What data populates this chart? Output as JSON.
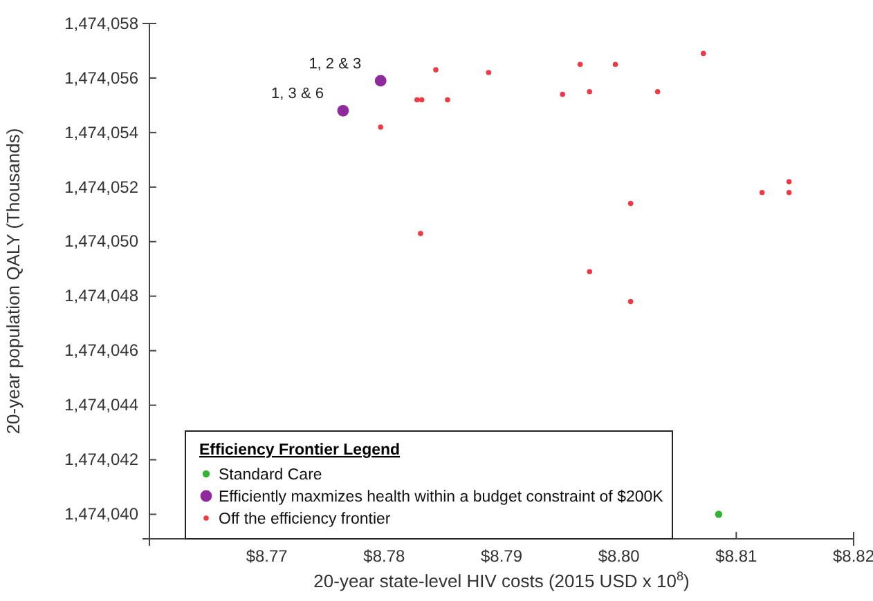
{
  "chart_data": {
    "type": "scatter",
    "xlabel": "20-year state-level HIV costs (2015 USD x 10$^{8}$)",
    "ylabel": "20-year population QALY (Thousands)",
    "legend_title": "Efficiency Frontier Legend",
    "legend": "bottom left",
    "marker": "circle",
    "grid": false,
    "xlim": [
      8.76,
      8.82
    ],
    "ylim": [
      1474039.1,
      1474058
    ],
    "xticks": [
      {
        "value": 8.77,
        "label": "$8.77"
      },
      {
        "value": 8.78,
        "label": "$8.78"
      },
      {
        "value": 8.79,
        "label": "$8.79"
      },
      {
        "value": 8.8,
        "label": "$8.80"
      },
      {
        "value": 8.81,
        "label": "$8.81"
      },
      {
        "value": 8.82,
        "label": "$8.82"
      }
    ],
    "yticks": [
      {
        "value": 1474040,
        "label": "1,474,040"
      },
      {
        "value": 1474042,
        "label": "1,474,042"
      },
      {
        "value": 1474044,
        "label": "1,474,044"
      },
      {
        "value": 1474046,
        "label": "1,474,046"
      },
      {
        "value": 1474048,
        "label": "1,474,048"
      },
      {
        "value": 1474050,
        "label": "1,474,050"
      },
      {
        "value": 1474052,
        "label": "1,474,052"
      },
      {
        "value": 1474054,
        "label": "1,474,054"
      },
      {
        "value": 1474056,
        "label": "1,474,056"
      },
      {
        "value": 1474058,
        "label": "1,474,058"
      }
    ],
    "series": [
      {
        "name": "Standard Care",
        "color": "#33b233",
        "x": [
          8.8085
        ],
        "values": [
          1474040.0
        ]
      },
      {
        "name": "Efficiently maxmizes health within a budget constraint of $200K",
        "color": "#8e2a9c",
        "x": [
          8.7797,
          8.7765
        ],
        "values": [
          1474055.9,
          1474054.8
        ]
      },
      {
        "name": "Off the efficiency frontier",
        "color": "#ee3a45",
        "x": [
          8.7844,
          8.7889,
          8.7828,
          8.7832,
          8.7854,
          8.7797,
          8.7831,
          8.8072,
          8.7967,
          8.7997,
          8.7952,
          8.7975,
          8.8033,
          8.8145,
          8.8122,
          8.8145,
          8.801,
          8.7975,
          8.801
        ],
        "values": [
          1474056.3,
          1474056.2,
          1474055.2,
          1474055.2,
          1474055.2,
          1474054.2,
          1474050.3,
          1474056.9,
          1474056.5,
          1474056.5,
          1474055.4,
          1474055.5,
          1474055.5,
          1474052.2,
          1474051.8,
          1474051.8,
          1474051.4,
          1474048.9,
          1474047.8
        ]
      }
    ],
    "annotations": [
      {
        "text": "1, 2 & 3",
        "x": 8.7797,
        "y": 1474055.9
      },
      {
        "text": "1, 3 & 6",
        "x": 8.7765,
        "y": 1474054.8
      }
    ]
  }
}
